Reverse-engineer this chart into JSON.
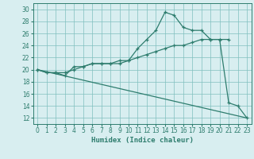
{
  "line1_x": [
    0,
    1,
    2,
    3,
    4,
    5,
    6,
    7,
    8,
    9,
    10,
    11,
    12,
    13,
    14,
    15,
    16,
    17,
    18,
    19,
    20,
    21,
    22,
    23
  ],
  "line1_y": [
    20.0,
    19.5,
    19.5,
    19.0,
    20.5,
    20.5,
    21.0,
    21.0,
    21.0,
    21.0,
    21.5,
    23.5,
    25.0,
    26.5,
    29.5,
    29.0,
    27.0,
    26.5,
    26.5,
    25.0,
    25.0,
    14.5,
    14.0,
    12.0
  ],
  "line2_x": [
    0,
    1,
    2,
    3,
    4,
    5,
    6,
    7,
    8,
    9,
    10,
    11,
    12,
    13,
    14,
    15,
    16,
    17,
    18,
    19,
    20,
    21
  ],
  "line2_y": [
    20.0,
    19.5,
    19.5,
    19.5,
    20.0,
    20.5,
    21.0,
    21.0,
    21.0,
    21.5,
    21.5,
    22.0,
    22.5,
    23.0,
    23.5,
    24.0,
    24.0,
    24.5,
    25.0,
    25.0,
    25.0,
    25.0
  ],
  "line3_x": [
    0,
    23
  ],
  "line3_y": [
    20.0,
    12.0
  ],
  "color": "#2e7d6e",
  "bg_color": "#d8eef0",
  "grid_color": "#7fbfbf",
  "xlabel": "Humidex (Indice chaleur)",
  "xlim": [
    -0.5,
    23.5
  ],
  "ylim": [
    11,
    31
  ],
  "yticks": [
    12,
    14,
    16,
    18,
    20,
    22,
    24,
    26,
    28,
    30
  ],
  "xticks": [
    0,
    1,
    2,
    3,
    4,
    5,
    6,
    7,
    8,
    9,
    10,
    11,
    12,
    13,
    14,
    15,
    16,
    17,
    18,
    19,
    20,
    21,
    22,
    23
  ]
}
